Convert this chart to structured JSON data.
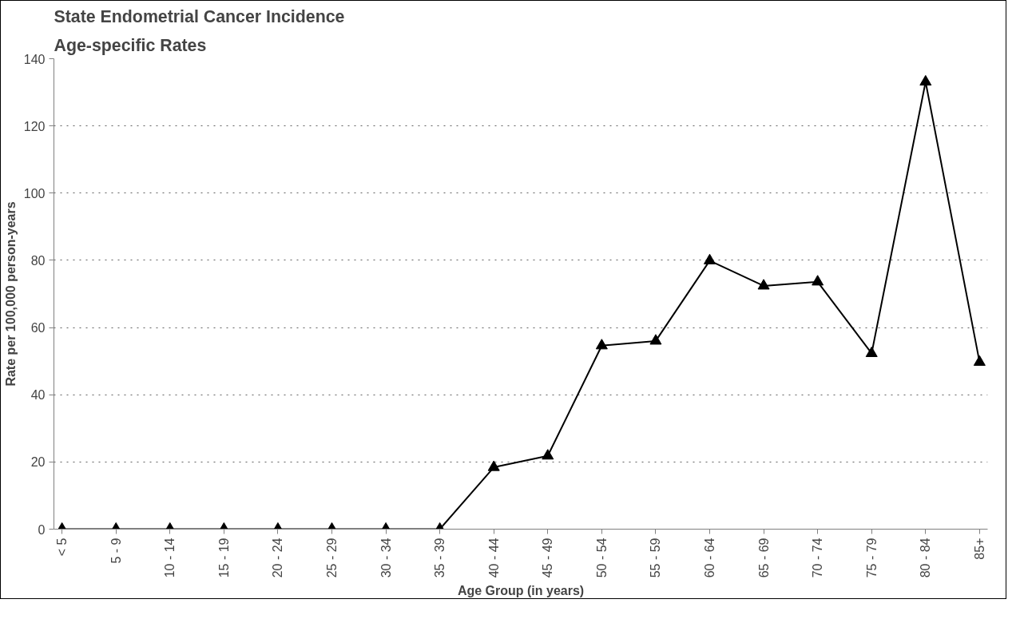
{
  "chart_data": {
    "type": "line",
    "title": "State Endometrial Cancer Incidence",
    "subtitle": "Age-specific Rates",
    "xlabel": "Age Group (in years)",
    "ylabel": "Rate per 100,000 person-years",
    "categories": [
      "< 5",
      "5 - 9",
      "10 - 14",
      "15 - 19",
      "20 - 24",
      "25 - 29",
      "30 - 34",
      "35 - 39",
      "40 - 44",
      "45 - 49",
      "50 - 54",
      "55 - 59",
      "60 - 64",
      "65 - 69",
      "70 - 74",
      "75 - 79",
      "80 - 84",
      "85+"
    ],
    "series": [
      {
        "color": "#000000",
        "values": [
          0,
          0,
          0,
          0,
          0,
          0,
          0,
          0,
          18.4,
          21.8,
          54.6,
          56.0,
          79.9,
          72.4,
          73.6,
          52.3,
          133.1,
          49.7
        ]
      }
    ],
    "ylim": [
      0,
      140
    ],
    "yticks": [
      0,
      20,
      40,
      60,
      80,
      100,
      120,
      140
    ],
    "grid": "y",
    "marker": "triangle",
    "line_style": "solid"
  }
}
